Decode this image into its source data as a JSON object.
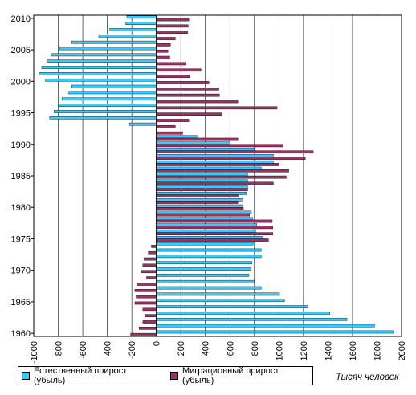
{
  "chart_data": {
    "type": "bar",
    "orientation": "horizontal",
    "stacked": false,
    "xlim": [
      -1000,
      2000
    ],
    "x_ticks": [
      "-1000",
      "-800",
      "-600",
      "-400",
      "-200",
      "0",
      "200",
      "400",
      "600",
      "800",
      "1000",
      "1200",
      "1400",
      "1600",
      "1800",
      "2000"
    ],
    "y_tick_labels": [
      "1960",
      "1965",
      "1970",
      "1975",
      "1980",
      "1985",
      "1990",
      "1995",
      "2000",
      "2005",
      "2010"
    ],
    "grid": "vertical",
    "legend_position": "bottom-left",
    "unit_label": "Тысяч человек",
    "categories": [
      1960,
      1961,
      1962,
      1963,
      1964,
      1965,
      1966,
      1967,
      1968,
      1969,
      1970,
      1971,
      1972,
      1973,
      1974,
      1975,
      1976,
      1977,
      1978,
      1979,
      1980,
      1981,
      1982,
      1983,
      1984,
      1985,
      1986,
      1987,
      1988,
      1989,
      1990,
      1991,
      1992,
      1993,
      1994,
      1995,
      1996,
      1997,
      1998,
      1999,
      2000,
      2001,
      2002,
      2003,
      2004,
      2005,
      2006,
      2007,
      2008,
      2009,
      2010
    ],
    "series": [
      {
        "name": "Естественный прирост (убыль)",
        "color": "#33ccff",
        "values": [
          1935,
          1780,
          1555,
          1415,
          1235,
          1045,
          1005,
          855,
          800,
          755,
          770,
          780,
          855,
          855,
          790,
          870,
          810,
          820,
          785,
          775,
          705,
          705,
          735,
          745,
          745,
          745,
          855,
          955,
          955,
          800,
          600,
          340,
          0,
          -220,
          -870,
          -835,
          -800,
          -770,
          -715,
          -690,
          -905,
          -955,
          -935,
          -890,
          -860,
          -790,
          -690,
          -470,
          -380,
          -250,
          -240
        ]
      },
      {
        "name": "Миграционный прирост (убыль)",
        "color": "#993366",
        "values": [
          -210,
          -140,
          -110,
          -90,
          -110,
          -175,
          -165,
          -175,
          -160,
          -80,
          -120,
          -110,
          -100,
          -65,
          -40,
          915,
          950,
          950,
          945,
          760,
          710,
          665,
          675,
          745,
          955,
          1060,
          1080,
          1000,
          1215,
          1280,
          1035,
          665,
          215,
          155,
          265,
          535,
          985,
          665,
          515,
          510,
          430,
          270,
          365,
          240,
          110,
          95,
          115,
          155,
          255,
          260,
          265
        ]
      }
    ]
  }
}
